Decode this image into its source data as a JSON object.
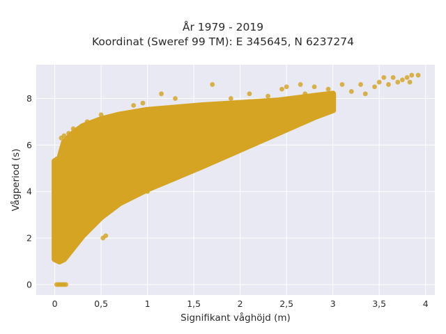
{
  "chart_data": {
    "type": "scatter",
    "title": "År 1979 - 2019",
    "subtitle": "Koordinat (Sweref 99 TM): E 345645, N 6237274",
    "xlabel": "Signifikant våghöjd (m)",
    "ylabel": "Vågperiod (s)",
    "xlim": [
      -0.2,
      4.1
    ],
    "ylim": [
      -0.45,
      9.45
    ],
    "xticks": [
      0,
      0.5,
      1,
      1.5,
      2,
      2.5,
      3,
      3.5,
      4
    ],
    "xtick_labels": [
      "0",
      "0,5",
      "1",
      "1,5",
      "2",
      "2,5",
      "3",
      "3,5",
      "4"
    ],
    "yticks": [
      0,
      2,
      4,
      6,
      8
    ],
    "ytick_labels": [
      "0",
      "2",
      "4",
      "6",
      "8"
    ],
    "grid": true,
    "marker_color": "#d4a422",
    "background_color": "#e8e9f2",
    "dense_band": {
      "x": [
        0.0,
        0.05,
        0.1,
        0.2,
        0.3,
        0.5,
        0.7,
        1.0,
        1.3,
        1.6,
        2.0,
        2.4,
        2.8,
        3.0
      ],
      "y_lower": [
        1.1,
        1.0,
        1.1,
        1.6,
        2.1,
        2.9,
        3.5,
        4.1,
        4.6,
        5.1,
        5.8,
        6.5,
        7.2,
        7.5
      ],
      "y_upper": [
        5.3,
        5.4,
        6.1,
        6.5,
        6.8,
        7.1,
        7.3,
        7.5,
        7.6,
        7.7,
        7.8,
        7.9,
        8.1,
        8.2
      ]
    },
    "points": [
      {
        "x": 0.02,
        "y": 0
      },
      {
        "x": 0.04,
        "y": 0
      },
      {
        "x": 0.06,
        "y": 0
      },
      {
        "x": 0.08,
        "y": 0
      },
      {
        "x": 0.1,
        "y": 0
      },
      {
        "x": 0.12,
        "y": 0
      },
      {
        "x": 0.07,
        "y": 6.3
      },
      {
        "x": 0.1,
        "y": 6.4
      },
      {
        "x": 0.15,
        "y": 6.5
      },
      {
        "x": 0.2,
        "y": 6.7
      },
      {
        "x": 0.25,
        "y": 6.6
      },
      {
        "x": 0.35,
        "y": 7.0
      },
      {
        "x": 0.5,
        "y": 7.3
      },
      {
        "x": 0.65,
        "y": 7.2
      },
      {
        "x": 0.55,
        "y": 2.1
      },
      {
        "x": 0.52,
        "y": 2.0
      },
      {
        "x": 0.85,
        "y": 7.7
      },
      {
        "x": 0.95,
        "y": 7.8
      },
      {
        "x": 1.15,
        "y": 8.2
      },
      {
        "x": 1.3,
        "y": 8.0
      },
      {
        "x": 1.55,
        "y": 7.5
      },
      {
        "x": 1.7,
        "y": 8.6
      },
      {
        "x": 1.9,
        "y": 8.0
      },
      {
        "x": 2.1,
        "y": 8.2
      },
      {
        "x": 2.3,
        "y": 8.1
      },
      {
        "x": 2.45,
        "y": 8.4
      },
      {
        "x": 2.5,
        "y": 8.5
      },
      {
        "x": 2.65,
        "y": 8.6
      },
      {
        "x": 2.7,
        "y": 8.2
      },
      {
        "x": 2.8,
        "y": 8.5
      },
      {
        "x": 2.95,
        "y": 8.4
      },
      {
        "x": 3.1,
        "y": 8.6
      },
      {
        "x": 3.2,
        "y": 8.3
      },
      {
        "x": 3.3,
        "y": 8.6
      },
      {
        "x": 3.35,
        "y": 8.2
      },
      {
        "x": 3.45,
        "y": 8.5
      },
      {
        "x": 3.5,
        "y": 8.7
      },
      {
        "x": 3.55,
        "y": 8.9
      },
      {
        "x": 3.6,
        "y": 8.6
      },
      {
        "x": 3.65,
        "y": 8.9
      },
      {
        "x": 3.7,
        "y": 8.7
      },
      {
        "x": 3.75,
        "y": 8.8
      },
      {
        "x": 3.8,
        "y": 8.9
      },
      {
        "x": 3.85,
        "y": 9.0
      },
      {
        "x": 3.92,
        "y": 9.0
      },
      {
        "x": 3.83,
        "y": 8.7
      },
      {
        "x": 1.5,
        "y": 5.0
      },
      {
        "x": 1.6,
        "y": 5.2
      },
      {
        "x": 1.0,
        "y": 4.0
      },
      {
        "x": 0.4,
        "y": 2.9
      },
      {
        "x": 0.3,
        "y": 2.5
      },
      {
        "x": 0.02,
        "y": 2.5
      },
      {
        "x": 0.0,
        "y": 3.7
      },
      {
        "x": 0.0,
        "y": 4.0
      },
      {
        "x": 0.02,
        "y": 5.4
      }
    ]
  }
}
